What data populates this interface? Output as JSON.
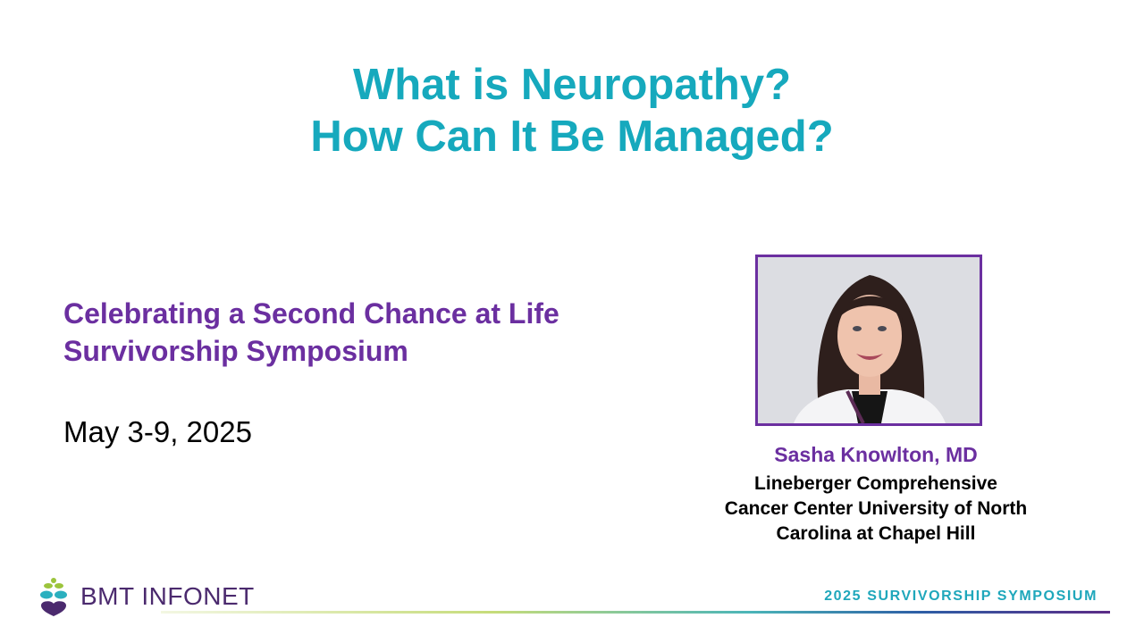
{
  "title": {
    "line1": "What is Neuropathy?",
    "line2": "How Can It Be Managed?"
  },
  "event": {
    "line1": "Celebrating a Second Chance at Life",
    "line2": "Survivorship Symposium",
    "date": "May 3-9, 2025"
  },
  "speaker": {
    "name": "Sasha Knowlton, MD",
    "affiliation": [
      "Lineberger Comprehensive",
      "Cancer Center University of North",
      "Carolina at Chapel Hill"
    ]
  },
  "footer": {
    "logo": "BMT INFONET",
    "tagline": "2025 SURVIVORSHIP SYMPOSIUM"
  },
  "colors": {
    "title": "#16a9bd",
    "accent": "#6b2fa0"
  }
}
